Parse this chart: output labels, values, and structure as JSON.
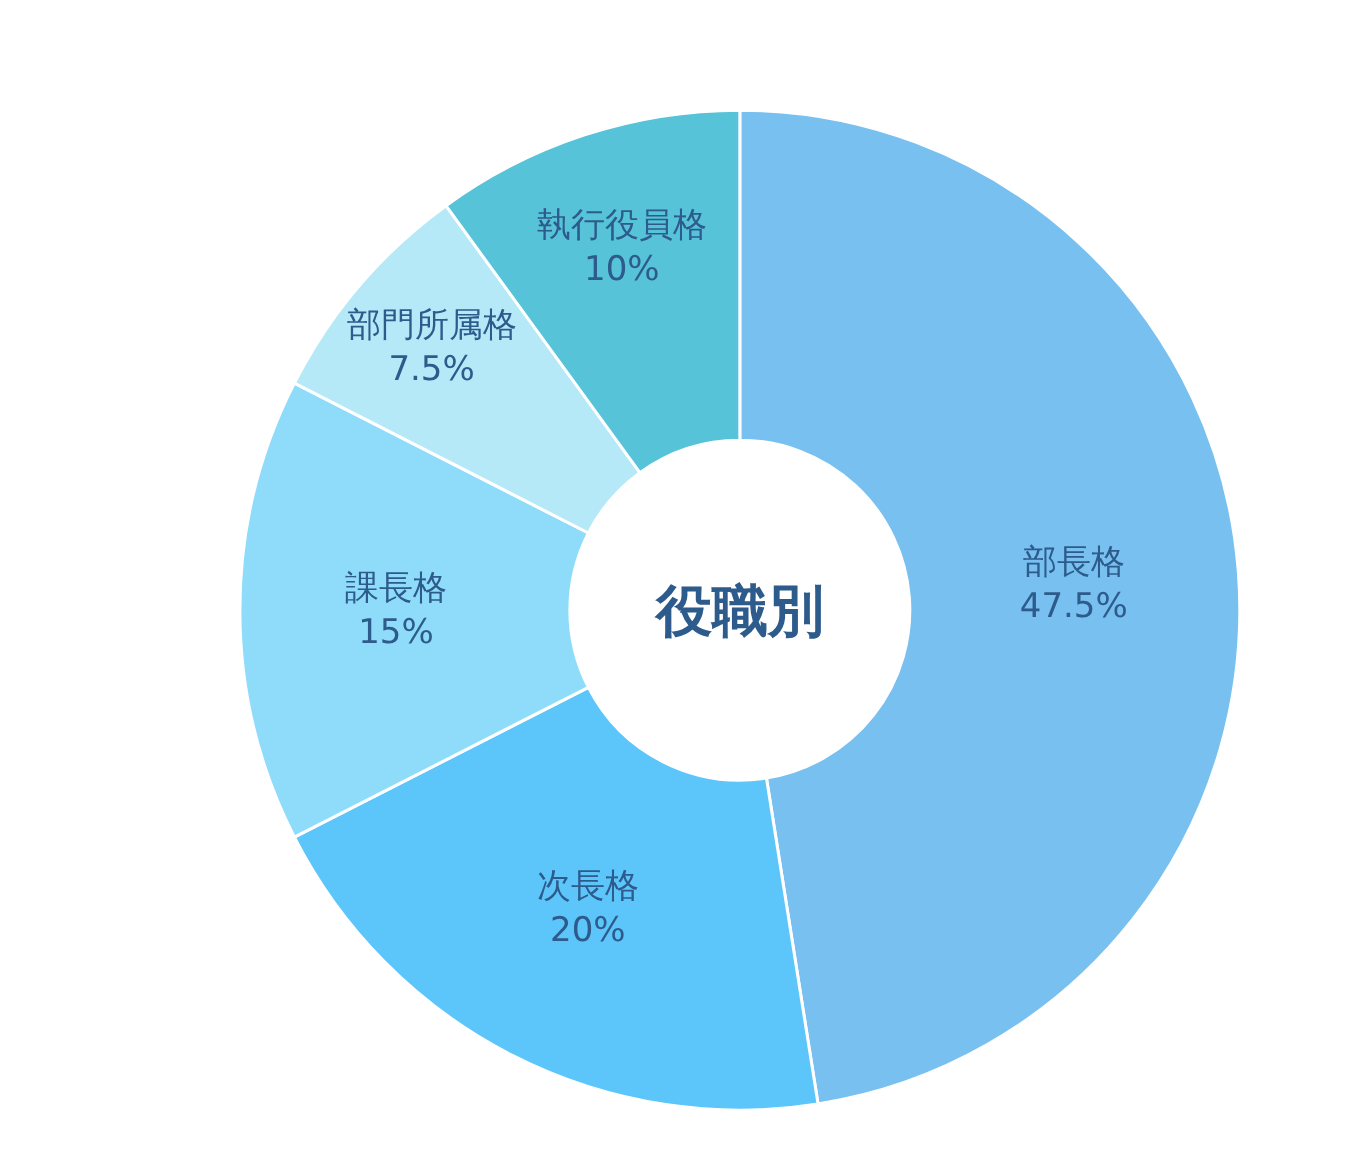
{
  "chart_data": {
    "type": "donut",
    "title": "役職別",
    "categories": [
      "部長格",
      "次長格",
      "課長格",
      "部門所属格",
      "執行役員格"
    ],
    "values": [
      47.5,
      20,
      15,
      7.5,
      10
    ],
    "value_labels": [
      "47.5%",
      "20%",
      "15%",
      "7.5%",
      "10%"
    ],
    "colors": [
      "#78c0f0",
      "#5cc6fb",
      "#8edcfa",
      "#b6e9f8",
      "#56c3d8"
    ],
    "legend": false
  }
}
